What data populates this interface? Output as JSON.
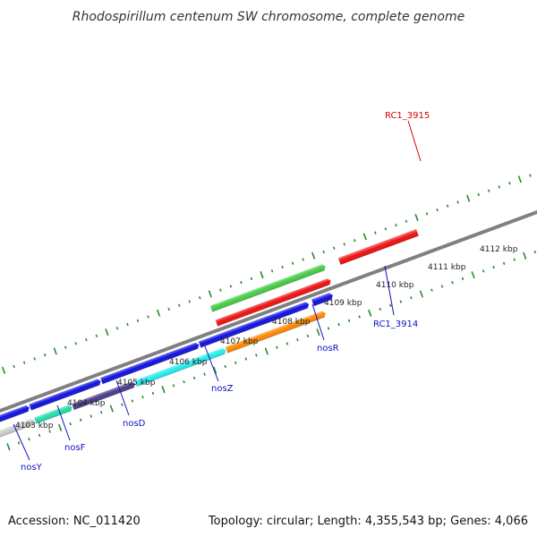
{
  "title": "Rhodospirillum centenum SW chromosome, complete genome",
  "accession": "Accession: NC_011420",
  "summary": "Topology: circular; Length: 4,355,543 bp; Genes: 4,066",
  "tick_labels": [
    "4103 kbp",
    "4104 kbp",
    "4105 kbp",
    "4106 kbp",
    "4107 kbp",
    "4108 kbp",
    "4109 kbp",
    "4110 kbp",
    "4111 kbp",
    "4112 kbp"
  ],
  "gene_labels": {
    "rc1_3915": "RC1_3915",
    "rc1_3914": "RC1_3914",
    "nosr": "nosR",
    "nosz": "nosZ",
    "nosd": "nosD",
    "nosf": "nosF",
    "nosy": "nosY"
  },
  "colors": {
    "backbone": "#808080",
    "cds_forward": "#1010e0",
    "cds_reverse": "#ee1010",
    "label_blue": "#1010c0",
    "label_red": "#dd0000",
    "tick": "#2a8a2a",
    "gene_green": "#44cc44",
    "gene_teal": "#22ddaa",
    "gene_purple": "#4a3a8a",
    "gene_cyan": "#22eeee",
    "gene_orange": "#ff8800",
    "gene_gray": "#cccccc"
  }
}
